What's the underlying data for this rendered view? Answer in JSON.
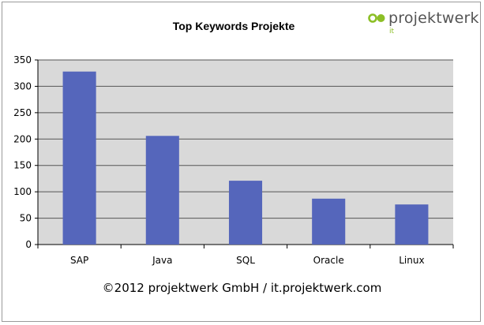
{
  "logo": {
    "name": "projektwerk",
    "sub": "it",
    "colors": {
      "primary": "#8cbf26",
      "text": "#555555"
    }
  },
  "footer": "©2012 projektwerk GmbH / it.projektwerk.com",
  "chart_data": {
    "type": "bar",
    "title": "Top Keywords Projekte",
    "categories": [
      "SAP",
      "Java",
      "SQL",
      "Oracle",
      "Linux"
    ],
    "values": [
      328,
      206,
      121,
      87,
      76
    ],
    "xlabel": "",
    "ylabel": "",
    "ylim": [
      0,
      350
    ],
    "yticks": [
      0,
      50,
      100,
      150,
      200,
      250,
      300,
      350
    ],
    "grid": true,
    "legend": "none",
    "colors": {
      "bar": "#5566bb",
      "plot_bg": "#d9d9d9",
      "grid": "#555555"
    }
  }
}
